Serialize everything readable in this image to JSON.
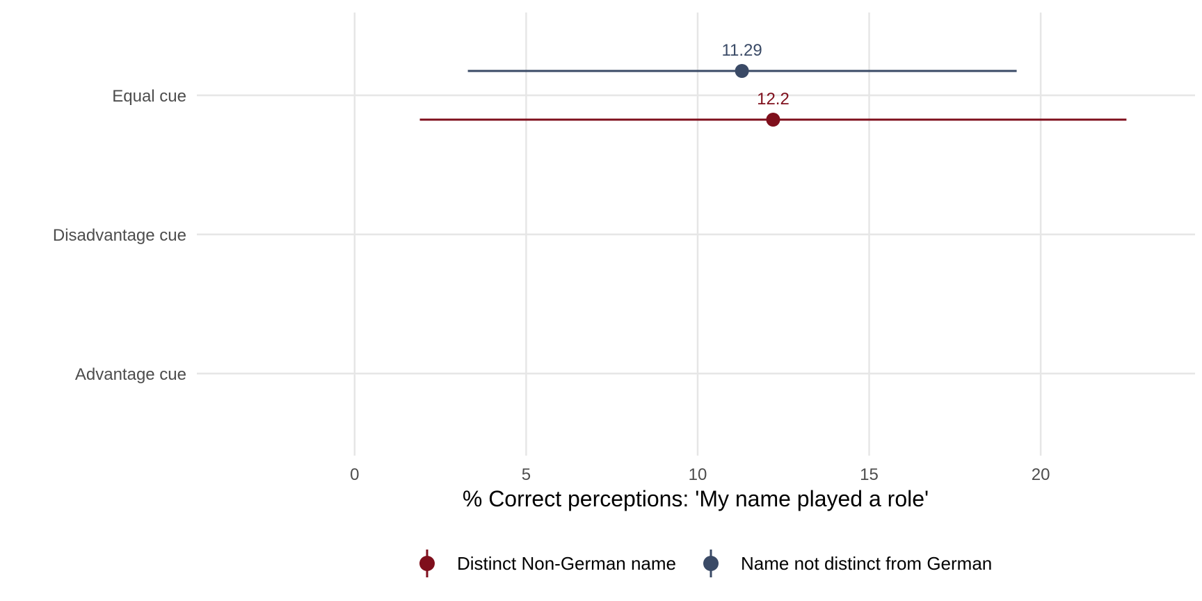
{
  "chart_data": {
    "type": "scatter",
    "xlabel": "% Correct perceptions: 'My name played a role'",
    "ylabel": "",
    "categories": [
      "Equal cue",
      "Disadvantage cue",
      "Advantage cue"
    ],
    "xlim": [
      -4.6,
      24.5
    ],
    "xticks": [
      0,
      5,
      10,
      15,
      20
    ],
    "grid": true,
    "legend_position": "bottom",
    "series": [
      {
        "name": "Distinct Non-German name",
        "color": "#7f0f1c",
        "points": [
          {
            "category": "Equal cue",
            "value": 12.2,
            "ci_low": 1.9,
            "ci_high": 22.5,
            "label": "12.2"
          }
        ]
      },
      {
        "name": "Name not distinct from German",
        "color": "#3a4a66",
        "points": [
          {
            "category": "Equal cue",
            "value": 11.29,
            "ci_low": 3.3,
            "ci_high": 19.3,
            "label": "11.29"
          }
        ]
      }
    ]
  }
}
